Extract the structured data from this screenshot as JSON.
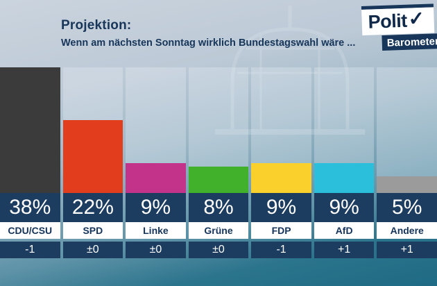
{
  "header": {
    "title": "Projektion:",
    "subtitle": "Wenn am nächsten Sonntag wirklich Bundestagswahl wäre ...",
    "logo": {
      "top": "Polit",
      "check": "✓",
      "bottom": "Barometer"
    }
  },
  "chart_data": {
    "type": "bar",
    "title": "Projektion: Wenn am nächsten Sonntag wirklich Bundestagswahl wäre ...",
    "categories": [
      "CDU/CSU",
      "SPD",
      "Linke",
      "Grüne",
      "FDP",
      "AfD",
      "Andere"
    ],
    "values": [
      38,
      22,
      9,
      8,
      9,
      9,
      5
    ],
    "value_labels": [
      "38%",
      "22%",
      "9%",
      "8%",
      "9%",
      "9%",
      "5%"
    ],
    "changes": [
      "-1",
      "±0",
      "±0",
      "±0",
      "-1",
      "+1",
      "+1"
    ],
    "bar_colors": [
      "#3b3b3b",
      "#e23d1d",
      "#c23389",
      "#41b12b",
      "#fad02c",
      "#2bbfdc",
      "#9b9b9b"
    ],
    "ylim": [
      0,
      40
    ],
    "legend_position": "none",
    "grid": false
  },
  "colors": {
    "navy_band": "#1c3c60",
    "text_navy": "#14335a",
    "background_top": "#cbd4de",
    "background_bottom": "#1f6a84"
  }
}
